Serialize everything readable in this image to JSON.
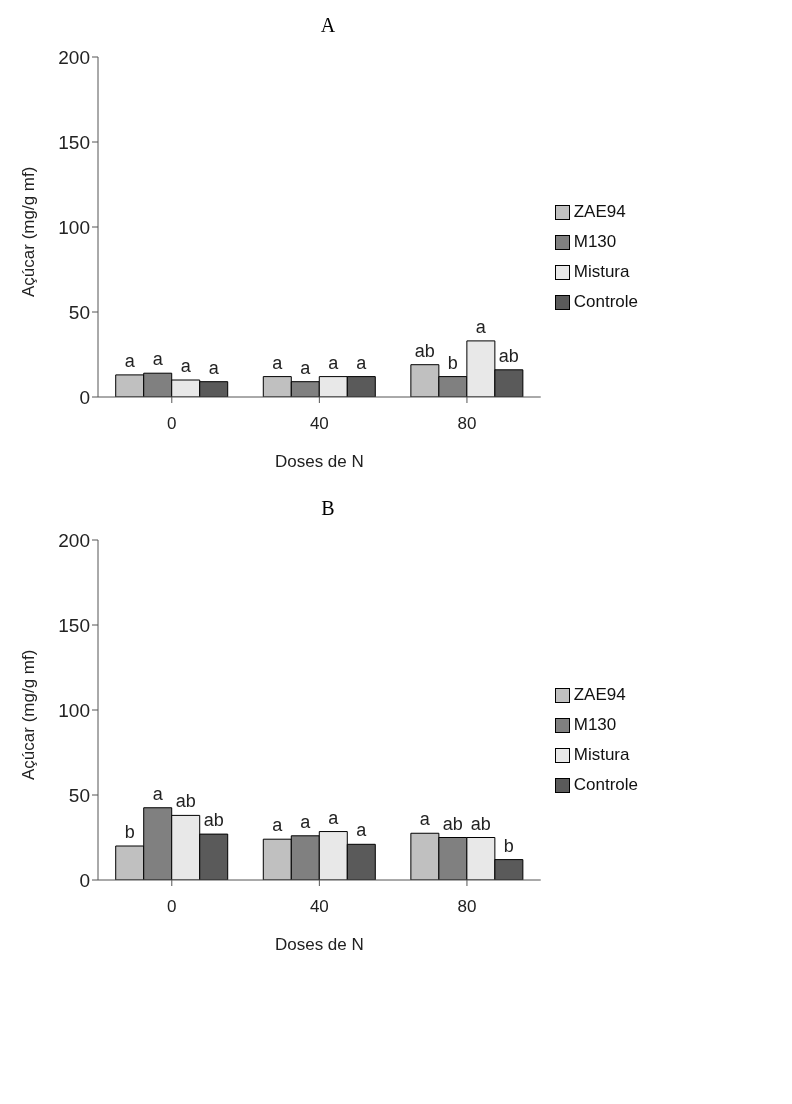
{
  "chart_data": [
    {
      "type": "bar",
      "title": "A",
      "xlabel": "Doses de N",
      "ylabel": "Açúcar (mg/g mf)",
      "categories": [
        "0",
        "40",
        "80"
      ],
      "ylim": [
        0,
        200
      ],
      "yticks": [
        0,
        50,
        100,
        150,
        200
      ],
      "grid": false,
      "legend": "right",
      "series": [
        {
          "name": "ZAE94",
          "color": "#c0c0c0",
          "values": [
            13,
            12,
            19
          ],
          "value_labels": [
            "a",
            "a",
            "ab"
          ]
        },
        {
          "name": "M130",
          "color": "#808080",
          "values": [
            14,
            9,
            12
          ],
          "value_labels": [
            "a",
            "a",
            "b"
          ]
        },
        {
          "name": "Mistura",
          "color": "#e8e8e8",
          "values": [
            10,
            12,
            33
          ],
          "value_labels": [
            "a",
            "a",
            "a"
          ]
        },
        {
          "name": "Controle",
          "color": "#5a5a5a",
          "values": [
            9,
            12,
            16
          ],
          "value_labels": [
            "a",
            "a",
            "ab"
          ]
        }
      ]
    },
    {
      "type": "bar",
      "title": "B",
      "xlabel": "Doses de N",
      "ylabel": "Açúcar (mg/g mf)",
      "categories": [
        "0",
        "40",
        "80"
      ],
      "ylim": [
        0,
        200
      ],
      "yticks": [
        0,
        50,
        100,
        150,
        200
      ],
      "grid": false,
      "legend": "right",
      "series": [
        {
          "name": "ZAE94",
          "color": "#c0c0c0",
          "values": [
            20,
            24,
            27.5
          ],
          "value_labels": [
            "b",
            "a",
            "a"
          ]
        },
        {
          "name": "M130",
          "color": "#808080",
          "values": [
            42.5,
            26,
            25
          ],
          "value_labels": [
            "a",
            "a",
            "ab"
          ]
        },
        {
          "name": "Mistura",
          "color": "#e8e8e8",
          "values": [
            38,
            28.5,
            25
          ],
          "value_labels": [
            "ab",
            "a",
            "ab"
          ]
        },
        {
          "name": "Controle",
          "color": "#5a5a5a",
          "values": [
            27,
            21,
            12
          ],
          "value_labels": [
            "ab",
            "a",
            "b"
          ]
        }
      ]
    }
  ]
}
